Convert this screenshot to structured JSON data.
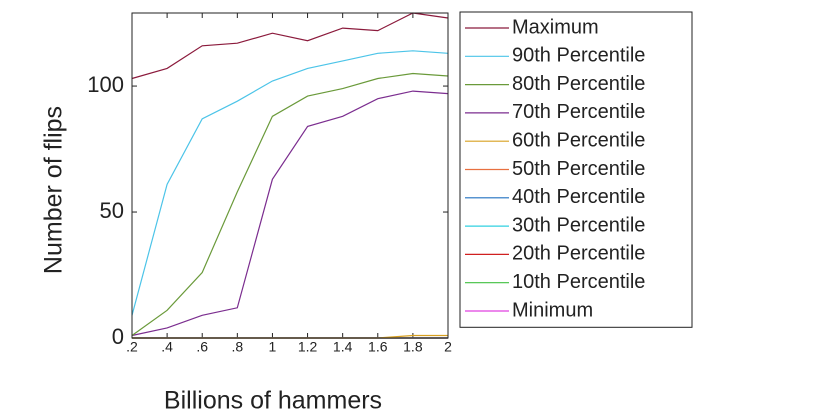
{
  "chart_data": {
    "type": "line",
    "xlabel": "Billions of hammers",
    "ylabel": "Number of flips",
    "x": [
      0.2,
      0.4,
      0.6,
      0.8,
      1,
      1.2,
      1.4,
      1.6,
      1.8,
      2
    ],
    "xlim": [
      0.2,
      2
    ],
    "xticks": [
      {
        "value": 0.2,
        "label": ".2"
      },
      {
        "value": 0.4,
        "label": ".4"
      },
      {
        "value": 0.6,
        "label": ".6"
      },
      {
        "value": 0.8,
        "label": ".8"
      },
      1,
      1.2,
      1.4,
      1.6,
      1.8,
      2
    ],
    "ylim": [
      0,
      129
    ],
    "yticks": [
      0,
      50,
      100
    ],
    "legend": "outside-right",
    "series": [
      {
        "name": "Maximum",
        "color": "#8b1a3c",
        "values": [
          103,
          107,
          116,
          117,
          121,
          118,
          123,
          122,
          129,
          127
        ]
      },
      {
        "name": "90th Percentile",
        "color": "#4cc4e8",
        "values": [
          9,
          61,
          87,
          94,
          102,
          107,
          110,
          113,
          114,
          113
        ]
      },
      {
        "name": "80th Percentile",
        "color": "#6a9a3a",
        "values": [
          1,
          11,
          26,
          58,
          88,
          96,
          99,
          103,
          105,
          104
        ]
      },
      {
        "name": "70th Percentile",
        "color": "#7b2d8f",
        "values": [
          1,
          4,
          9,
          12,
          63,
          84,
          88,
          95,
          98,
          97
        ]
      },
      {
        "name": "60th Percentile",
        "color": "#d8a020",
        "values": [
          0,
          0,
          0,
          0,
          0,
          0,
          0,
          0,
          1,
          1
        ]
      },
      {
        "name": "50th Percentile",
        "color": "#e87040",
        "values": [
          0,
          0,
          0,
          0,
          0,
          0,
          0,
          0,
          0,
          0
        ]
      },
      {
        "name": "40th Percentile",
        "color": "#2070c0",
        "values": [
          0,
          0,
          0,
          0,
          0,
          0,
          0,
          0,
          0,
          0
        ]
      },
      {
        "name": "30th Percentile",
        "color": "#30d0e0",
        "values": [
          0,
          0,
          0,
          0,
          0,
          0,
          0,
          0,
          0,
          0
        ]
      },
      {
        "name": "20th Percentile",
        "color": "#d02020",
        "values": [
          0,
          0,
          0,
          0,
          0,
          0,
          0,
          0,
          0,
          0
        ]
      },
      {
        "name": "10th Percentile",
        "color": "#40c040",
        "values": [
          0,
          0,
          0,
          0,
          0,
          0,
          0,
          0,
          0,
          0
        ]
      },
      {
        "name": "Minimum",
        "color": "#e040e0",
        "values": [
          0,
          0,
          0,
          0,
          0,
          0,
          0,
          0,
          0,
          0
        ]
      }
    ]
  }
}
